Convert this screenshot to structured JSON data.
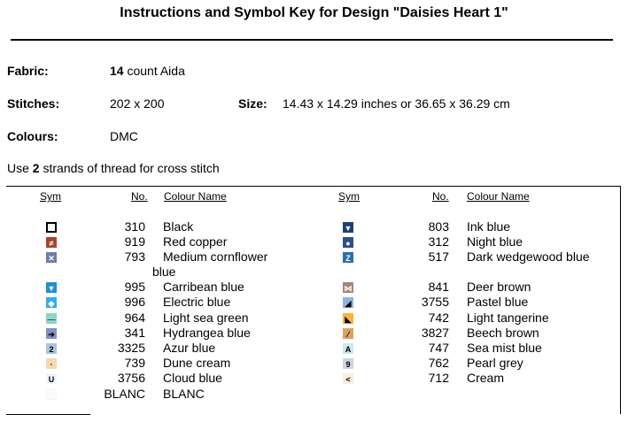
{
  "title": "Instructions and Symbol Key for Design \"Daisies Heart 1\"",
  "fabric": {
    "label": "Fabric:",
    "count": "14",
    "rest": " count Aida"
  },
  "stitches": {
    "label": "Stitches:",
    "value": "202 x 200"
  },
  "size": {
    "label": "Size:",
    "value": "14.43 x 14.29 inches or 36.65 x 36.29 cm"
  },
  "colours": {
    "label": "Colours:",
    "value": "DMC"
  },
  "strands": {
    "pre": "Use ",
    "count": "2",
    "post": " strands of thread for cross stitch"
  },
  "headers": {
    "sym": "Sym",
    "no": "No.",
    "name": "Colour Name"
  },
  "left": [
    {
      "no": "310",
      "name": "Black",
      "glyph": "",
      "bg": "#ffffff",
      "fg": "#000000",
      "border": "#000000",
      "icon": "hollow-square-icon"
    },
    {
      "no": "919",
      "name": "Red copper",
      "glyph": "≠",
      "bg": "#a8452d",
      "fg": "#ffffff",
      "border": "#a8452d",
      "icon": "not-equal-icon"
    },
    {
      "no": "793",
      "name": "Medium cornflower",
      "glyph": "✕",
      "bg": "#6f7ba8",
      "fg": "#ffffff",
      "border": "#6f7ba8",
      "icon": "cross-icon"
    },
    {
      "no": "995",
      "name": "Carribean blue",
      "glyph": "▼",
      "bg": "#1f8fd0",
      "fg": "#ffffff",
      "border": "#1f8fd0",
      "icon": "triangle-down-icon"
    },
    {
      "no": "996",
      "name": "Electric blue",
      "glyph": "◆",
      "bg": "#35aee8",
      "fg": "#ffffff",
      "border": "#35aee8",
      "icon": "diamond-icon"
    },
    {
      "no": "964",
      "name": "Light sea green",
      "glyph": "—",
      "bg": "#8fd4c8",
      "fg": "#2f4f4f",
      "border": "#8fd4c8",
      "icon": "dash-icon"
    },
    {
      "no": "341",
      "name": "Hydrangea blue",
      "glyph": "➔",
      "bg": "#8390c0",
      "fg": "#000000",
      "border": "#8390c0",
      "icon": "arrow-right-icon"
    },
    {
      "no": "3325",
      "name": "Azur blue",
      "glyph": "2",
      "bg": "#a9c4e4",
      "fg": "#000000",
      "border": "#a9c4e4",
      "icon": "number-two-icon"
    },
    {
      "no": "739",
      "name": "Dune cream",
      "glyph": "·",
      "bg": "#f1d9b3",
      "fg": "#000000",
      "border": "#f1d9b3",
      "icon": "dot-icon"
    },
    {
      "no": "3756",
      "name": "Cloud blue",
      "glyph": "U",
      "bg": "#eef6fb",
      "fg": "#000000",
      "border": "#eef6fb",
      "icon": "u-shape-icon"
    },
    {
      "no": "BLANC",
      "name": "BLANC",
      "glyph": "",
      "bg": "#fbfbfb",
      "fg": "#000000",
      "border": "#f4f4f4",
      "icon": "blank-icon"
    }
  ],
  "left_wrap": "blue",
  "right": [
    {
      "no": "803",
      "name": "Ink blue",
      "glyph": "▼",
      "bg": "#1f3f7a",
      "fg": "#ffffff",
      "border": "#1f3f7a",
      "icon": "triangle-down-icon"
    },
    {
      "no": "312",
      "name": "Night blue",
      "glyph": "●",
      "bg": "#2d4f86",
      "fg": "#ffffff",
      "border": "#2d4f86",
      "icon": "circle-icon"
    },
    {
      "no": "517",
      "name": "Dark wedgewood blue",
      "glyph": "Z",
      "bg": "#2f6fa8",
      "fg": "#ffffff",
      "border": "#2f6fa8",
      "icon": "letter-z-icon"
    },
    {
      "no": "841",
      "name": "Deer brown",
      "glyph": "⋈",
      "bg": "#a48677",
      "fg": "#ffffff",
      "border": "#a48677",
      "icon": "bowtie-icon"
    },
    {
      "no": "3755",
      "name": "Pastel blue",
      "glyph": "◢",
      "bg": "#8eb3de",
      "fg": "#000000",
      "border": "#8eb3de",
      "icon": "corner-triangle-icon"
    },
    {
      "no": "742",
      "name": "Light tangerine",
      "glyph": "◣",
      "bg": "#f7b43a",
      "fg": "#000000",
      "border": "#f7b43a",
      "icon": "corner-triangle-icon"
    },
    {
      "no": "3827",
      "name": "Beech brown",
      "glyph": "⁄",
      "bg": "#d8a263",
      "fg": "#000000",
      "border": "#d8a263",
      "icon": "slash-icon"
    },
    {
      "no": "747",
      "name": "Sea mist blue",
      "glyph": "A",
      "bg": "#cce9ee",
      "fg": "#000000",
      "border": "#cce9ee",
      "icon": "letter-a-icon"
    },
    {
      "no": "762",
      "name": "Pearl grey",
      "glyph": "9",
      "bg": "#d0d3d8",
      "fg": "#000000",
      "border": "#d0d3d8",
      "icon": "number-nine-icon"
    },
    {
      "no": "712",
      "name": "Cream",
      "glyph": "<",
      "bg": "#f8efdc",
      "fg": "#000000",
      "border": "#f8efdc",
      "icon": "less-than-icon"
    }
  ]
}
